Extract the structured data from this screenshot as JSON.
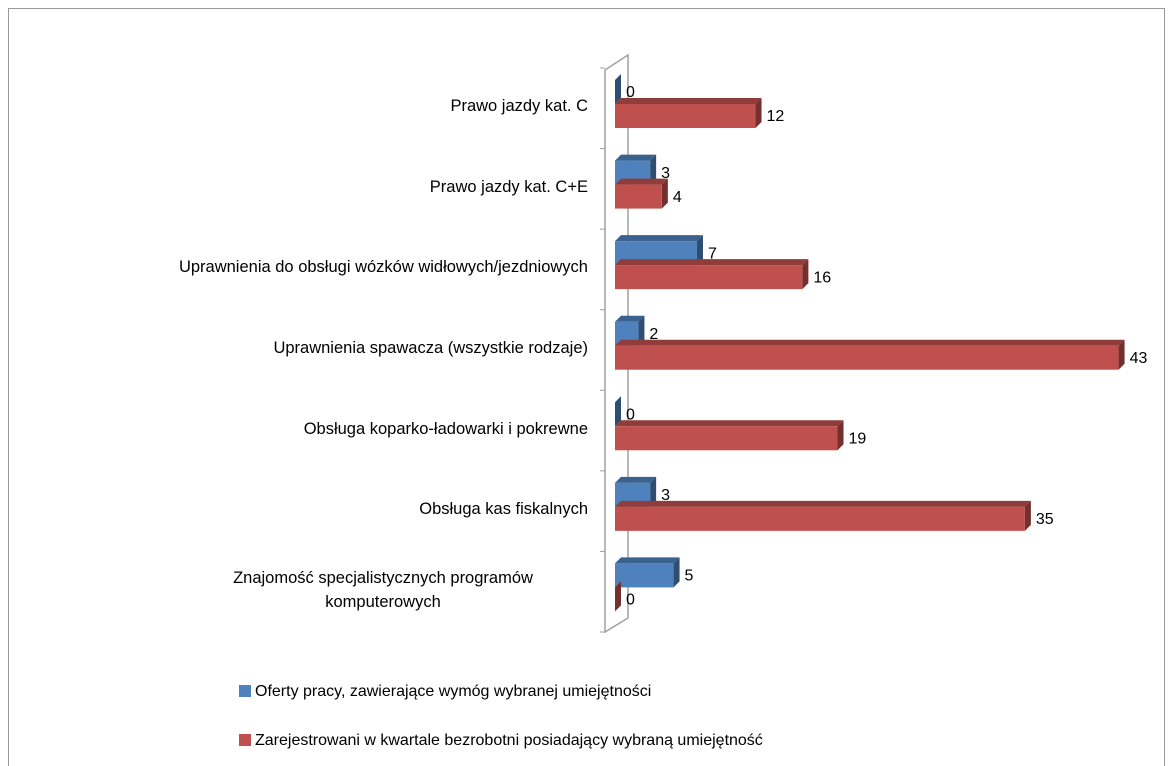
{
  "chart_data": {
    "type": "bar",
    "orientation": "horizontal",
    "categories": [
      "Prawo jazdy kat. C",
      "Prawo jazdy kat. C+E",
      "Uprawnienia do obsługi wózków widłowych/jezdniowych",
      "Uprawnienia spawacza (wszystkie rodzaje)",
      "Obsługa koparko-ładowarki i pokrewne",
      "Obsługa kas fiskalnych",
      "Znajomość specjalistycznych programów komputerowych"
    ],
    "series": [
      {
        "name": "Oferty pracy, zawierające wymóg wybranej umiejętności",
        "color": "#4f81bd",
        "values": [
          0,
          3,
          7,
          2,
          0,
          3,
          5
        ]
      },
      {
        "name": "Zarejestrowani w kwartale bezrobotni posiadający wybraną umiejętność",
        "color": "#c0504d",
        "values": [
          12,
          4,
          16,
          43,
          19,
          35,
          0
        ]
      }
    ],
    "xlim": [
      0,
      45
    ]
  }
}
